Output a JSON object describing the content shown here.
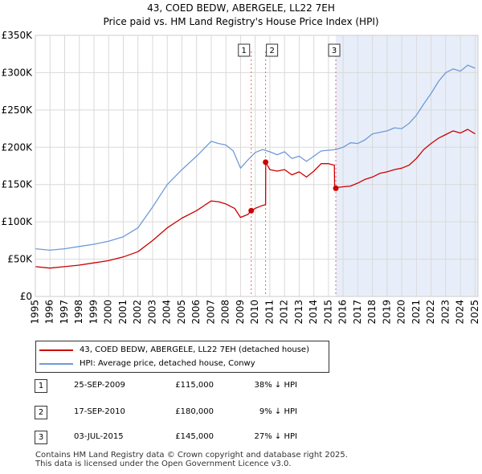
{
  "chart_data": {
    "type": "line",
    "title": "43, COED BEDW, ABERGELE, LL22 7EH",
    "subtitle": "Price paid vs. HM Land Registry's House Price Index (HPI)",
    "xlim": [
      1995.0,
      2025.2
    ],
    "ylim": [
      0,
      350000
    ],
    "yticks": [
      0,
      50000,
      100000,
      150000,
      200000,
      250000,
      300000,
      350000
    ],
    "ytick_labels": [
      "£0",
      "£50K",
      "£100K",
      "£150K",
      "£200K",
      "£250K",
      "£300K",
      "£350K"
    ],
    "xticks": [
      "1995",
      "1996",
      "1997",
      "1998",
      "1999",
      "2000",
      "2001",
      "2002",
      "2003",
      "2004",
      "2005",
      "2006",
      "2007",
      "2008",
      "2009",
      "2010",
      "2011",
      "2012",
      "2013",
      "2014",
      "2015",
      "2016",
      "2017",
      "2018",
      "2019",
      "2020",
      "2021",
      "2022",
      "2023",
      "2024",
      "2025"
    ],
    "shade_from": 2015.5,
    "series": [
      {
        "name": "43, COED BEDW, ABERGELE, LL22 7EH (detached house)",
        "color": "#cc0000",
        "points": [
          [
            1995.0,
            40000
          ],
          [
            1996.0,
            38000
          ],
          [
            1997.0,
            40000
          ],
          [
            1998.0,
            42000
          ],
          [
            1999.0,
            45000
          ],
          [
            2000.0,
            48000
          ],
          [
            2001.0,
            53000
          ],
          [
            2002.0,
            60000
          ],
          [
            2003.0,
            75000
          ],
          [
            2004.0,
            92000
          ],
          [
            2005.0,
            105000
          ],
          [
            2006.0,
            115000
          ],
          [
            2007.0,
            128000
          ],
          [
            2007.5,
            127000
          ],
          [
            2008.0,
            124000
          ],
          [
            2008.6,
            118000
          ],
          [
            2009.0,
            106000
          ],
          [
            2009.5,
            110000
          ],
          [
            2009.73,
            115000
          ],
          [
            2010.0,
            118000
          ],
          [
            2010.5,
            122000
          ],
          [
            2010.71,
            123000
          ],
          [
            2010.72,
            180000
          ],
          [
            2011.0,
            170000
          ],
          [
            2011.5,
            168000
          ],
          [
            2012.0,
            170000
          ],
          [
            2012.5,
            163000
          ],
          [
            2013.0,
            167000
          ],
          [
            2013.5,
            160000
          ],
          [
            2014.0,
            168000
          ],
          [
            2014.5,
            178000
          ],
          [
            2015.0,
            178000
          ],
          [
            2015.4,
            176000
          ],
          [
            2015.42,
            145000
          ],
          [
            2015.6,
            146000
          ],
          [
            2016.0,
            147000
          ],
          [
            2016.5,
            148000
          ],
          [
            2017.0,
            152000
          ],
          [
            2017.5,
            157000
          ],
          [
            2018.0,
            160000
          ],
          [
            2018.5,
            165000
          ],
          [
            2019.0,
            167000
          ],
          [
            2019.5,
            170000
          ],
          [
            2020.0,
            172000
          ],
          [
            2020.5,
            176000
          ],
          [
            2021.0,
            185000
          ],
          [
            2021.5,
            197000
          ],
          [
            2022.0,
            205000
          ],
          [
            2022.5,
            212000
          ],
          [
            2023.0,
            217000
          ],
          [
            2023.5,
            222000
          ],
          [
            2024.0,
            219000
          ],
          [
            2024.5,
            224000
          ],
          [
            2025.0,
            218000
          ]
        ]
      },
      {
        "name": "HPI: Average price, detached house, Conwy",
        "color": "#6f9ad6",
        "points": [
          [
            1995.0,
            64000
          ],
          [
            1996.0,
            62000
          ],
          [
            1997.0,
            64000
          ],
          [
            1998.0,
            67000
          ],
          [
            1999.0,
            70000
          ],
          [
            2000.0,
            74000
          ],
          [
            2001.0,
            80000
          ],
          [
            2002.0,
            92000
          ],
          [
            2003.0,
            120000
          ],
          [
            2004.0,
            150000
          ],
          [
            2005.0,
            170000
          ],
          [
            2006.0,
            188000
          ],
          [
            2007.0,
            208000
          ],
          [
            2007.5,
            205000
          ],
          [
            2008.0,
            203000
          ],
          [
            2008.5,
            195000
          ],
          [
            2009.0,
            172000
          ],
          [
            2009.5,
            183000
          ],
          [
            2010.0,
            193000
          ],
          [
            2010.5,
            197000
          ],
          [
            2011.0,
            194000
          ],
          [
            2011.5,
            190000
          ],
          [
            2012.0,
            194000
          ],
          [
            2012.5,
            185000
          ],
          [
            2013.0,
            188000
          ],
          [
            2013.5,
            181000
          ],
          [
            2014.0,
            188000
          ],
          [
            2014.5,
            195000
          ],
          [
            2015.0,
            196000
          ],
          [
            2015.5,
            197000
          ],
          [
            2016.0,
            200000
          ],
          [
            2016.5,
            206000
          ],
          [
            2017.0,
            205000
          ],
          [
            2017.5,
            210000
          ],
          [
            2018.0,
            218000
          ],
          [
            2018.5,
            220000
          ],
          [
            2019.0,
            222000
          ],
          [
            2019.5,
            226000
          ],
          [
            2020.0,
            225000
          ],
          [
            2020.5,
            232000
          ],
          [
            2021.0,
            243000
          ],
          [
            2021.5,
            258000
          ],
          [
            2022.0,
            272000
          ],
          [
            2022.5,
            288000
          ],
          [
            2023.0,
            300000
          ],
          [
            2023.5,
            305000
          ],
          [
            2024.0,
            302000
          ],
          [
            2024.5,
            310000
          ],
          [
            2025.0,
            306000
          ]
        ]
      }
    ],
    "sales": [
      {
        "num": "1",
        "x": 2009.73,
        "value": 115000,
        "date": "25-SEP-2009",
        "price": "£115,000",
        "hpi": "38% ↓ HPI"
      },
      {
        "num": "2",
        "x": 2010.71,
        "value": 180000,
        "date": "17-SEP-2010",
        "price": "£180,000",
        "hpi": "9% ↓ HPI"
      },
      {
        "num": "3",
        "x": 2015.5,
        "value": 145000,
        "date": "03-JUL-2015",
        "price": "£145,000",
        "hpi": "27% ↓ HPI"
      }
    ]
  },
  "footer": {
    "line1": "Contains HM Land Registry data © Crown copyright and database right 2025.",
    "line2": "This data is licensed under the Open Government Licence v3.0."
  }
}
